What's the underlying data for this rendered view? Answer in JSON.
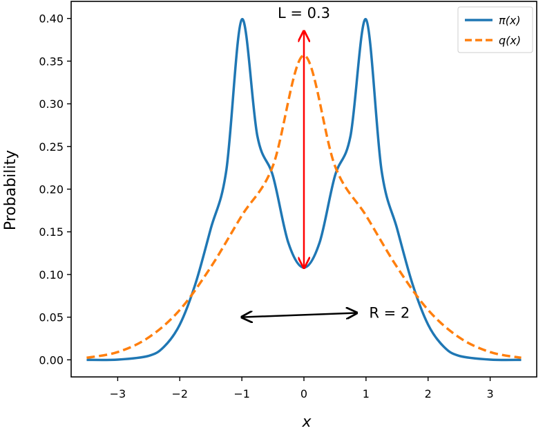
{
  "chart_data": {
    "type": "line",
    "xlabel": "x",
    "ylabel": "Probability",
    "xlim": [
      -3.75,
      3.75
    ],
    "ylim": [
      -0.02,
      0.42
    ],
    "x_ticks": [
      -3,
      -2,
      -1,
      0,
      1,
      2,
      3
    ],
    "x_tick_labels": [
      "−3",
      "−2",
      "−1",
      "0",
      "1",
      "2",
      "3"
    ],
    "y_ticks": [
      0.0,
      0.05,
      0.1,
      0.15,
      0.2,
      0.25,
      0.3,
      0.35,
      0.4
    ],
    "y_tick_labels": [
      "0.00",
      "0.05",
      "0.10",
      "0.15",
      "0.20",
      "0.25",
      "0.30",
      "0.35",
      "0.40"
    ],
    "grid": false,
    "legend_position": "top-right",
    "series": [
      {
        "name": "π(x)",
        "style": "solid",
        "color": "#1f77b4",
        "x": [
          -3.5,
          -3.0,
          -2.5,
          -2.25,
          -2.0,
          -1.75,
          -1.5,
          -1.25,
          -1.0,
          -0.75,
          -0.5,
          -0.25,
          0.0,
          0.25,
          0.5,
          0.75,
          1.0,
          1.25,
          1.5,
          1.75,
          2.0,
          2.25,
          2.5,
          3.0,
          3.5
        ],
        "y": [
          0.0,
          0.0003,
          0.0047,
          0.0156,
          0.0413,
          0.0886,
          0.1539,
          0.2222,
          0.3989,
          0.2622,
          0.2156,
          0.1369,
          0.1081,
          0.1369,
          0.2156,
          0.2622,
          0.3989,
          0.2222,
          0.1539,
          0.0886,
          0.0413,
          0.0156,
          0.0047,
          0.0003,
          0.0
        ]
      },
      {
        "name": "q(x)",
        "style": "dashed",
        "color": "#ff7f0e",
        "x": [
          -3.5,
          -3.0,
          -2.5,
          -2.0,
          -1.5,
          -1.0,
          -0.5,
          0.0,
          0.5,
          1.0,
          1.5,
          2.0,
          2.5,
          3.0,
          3.5
        ],
        "y": [
          0.0024,
          0.0091,
          0.0263,
          0.0585,
          0.1087,
          0.1691,
          0.2272,
          0.3567,
          0.2272,
          0.1691,
          0.1087,
          0.0585,
          0.0263,
          0.0091,
          0.0024
        ]
      }
    ],
    "annotations": [
      {
        "label": "L = 0.3",
        "color": "#ff0000",
        "x_from": 0.0,
        "y_from": 0.108,
        "x_to": 0.0,
        "y_to": 0.385
      },
      {
        "label": "R = 2",
        "color": "#000000",
        "x_from": -1.0,
        "y_from": 0.05,
        "x_to": 0.85,
        "y_to": 0.055
      }
    ]
  }
}
